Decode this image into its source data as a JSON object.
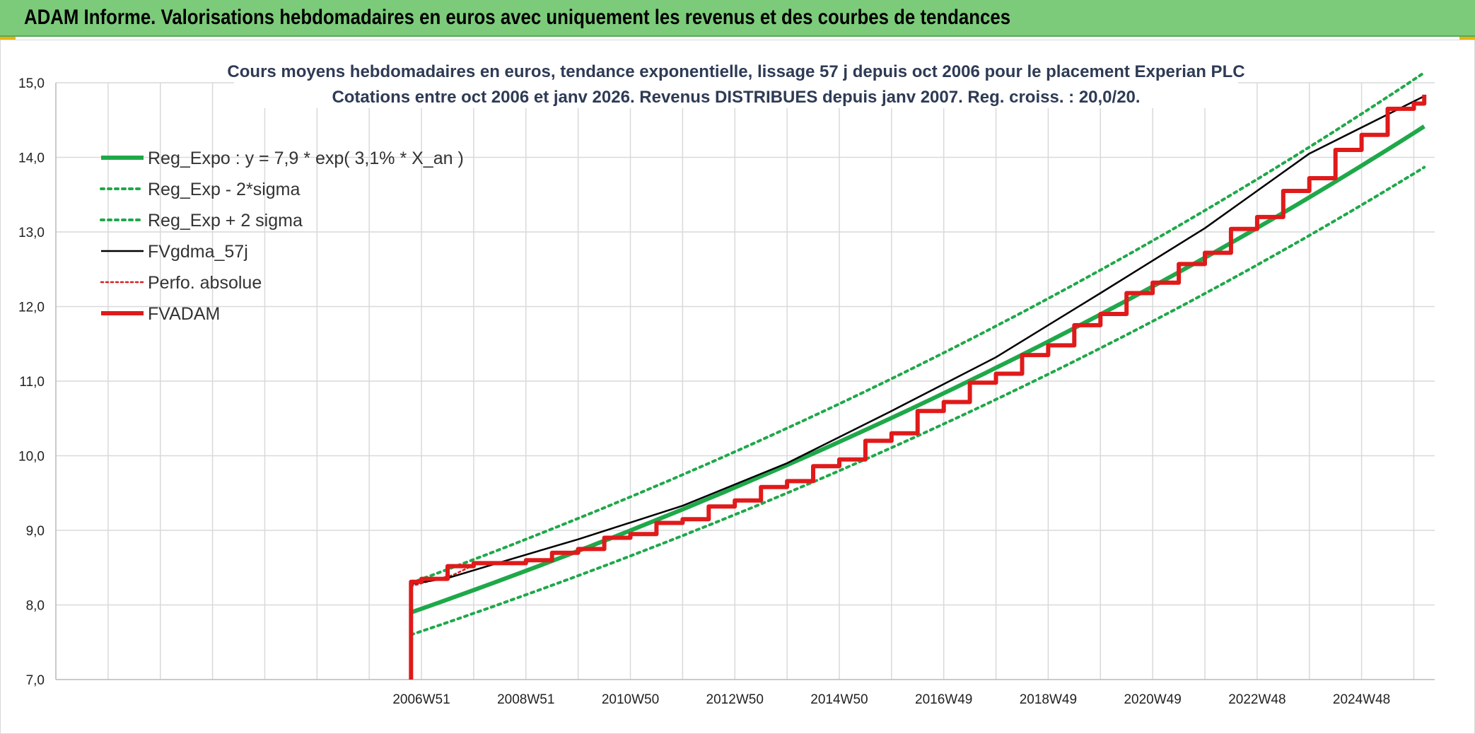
{
  "banner": {
    "title": "ADAM Informe. Valorisations hebdomadaires en euros avec uniquement les revenus et des courbes de tendances"
  },
  "chart_data": {
    "type": "line",
    "title_lines": [
      "Cours moyens hebdomadaires en euros, tendance exponentielle, lissage 57 j depuis oct 2006 pour le placement Experian PLC",
      "Cotations entre oct 2006 et janv 2026. Revenus DISTRIBUES depuis janv 2007. Reg. croiss. : 20,0/20."
    ],
    "xlabel": "",
    "ylabel": "",
    "ylim": [
      7.0,
      15.0
    ],
    "yticks": [
      "7,0",
      "8,0",
      "9,0",
      "10,0",
      "11,0",
      "12,0",
      "13,0",
      "14,0",
      "15,0"
    ],
    "x_tick_labels": [
      "2006W51",
      "2008W51",
      "2010W50",
      "2012W50",
      "2014W50",
      "2016W49",
      "2018W49",
      "2020W49",
      "2022W48",
      "2024W48"
    ],
    "grid": true,
    "legend_position": "top-left",
    "regression": {
      "a": 7.9,
      "rate": 0.031
    },
    "series": [
      {
        "name": "Reg_Expo : y = 7,9 * exp( 3,1% *  X_an )",
        "color": "#1fa84a",
        "style": "solid-thick",
        "points": [
          [
            2006.8,
            7.9
          ],
          [
            2010,
            8.71
          ],
          [
            2014,
            9.84
          ],
          [
            2018,
            11.11
          ],
          [
            2022,
            12.54
          ],
          [
            2025.0,
            13.76
          ],
          [
            2026.2,
            14.36
          ]
        ]
      },
      {
        "name": "Reg_Exp - 2*sigma",
        "color": "#1fa84a",
        "style": "dotted",
        "points": [
          [
            2006.8,
            7.6
          ],
          [
            2010,
            8.38
          ],
          [
            2014,
            9.47
          ],
          [
            2018,
            10.7
          ],
          [
            2022,
            12.06
          ],
          [
            2026.2,
            13.78
          ]
        ]
      },
      {
        "name": "Reg_Exp + 2 sigma",
        "color": "#1fa84a",
        "style": "dotted",
        "points": [
          [
            2006.8,
            8.3
          ],
          [
            2010,
            9.15
          ],
          [
            2014,
            10.34
          ],
          [
            2018,
            11.67
          ],
          [
            2022,
            13.17
          ],
          [
            2026.2,
            14.94
          ]
        ]
      },
      {
        "name": "FVgdma_57j",
        "color": "#000000",
        "style": "solid",
        "points": [
          [
            2006.8,
            8.28
          ],
          [
            2007.5,
            8.36
          ],
          [
            2008.5,
            8.57
          ],
          [
            2010,
            8.88
          ],
          [
            2012,
            9.33
          ],
          [
            2014,
            9.9
          ],
          [
            2016,
            10.6
          ],
          [
            2018,
            11.32
          ],
          [
            2020,
            12.18
          ],
          [
            2022,
            13.05
          ],
          [
            2024,
            14.05
          ],
          [
            2026.2,
            14.82
          ]
        ]
      },
      {
        "name": "Perfo. absolue",
        "color": "#d42020",
        "style": "dotted-thin",
        "points": [
          [
            2006.8,
            8.25
          ],
          [
            2007.2,
            8.33
          ],
          [
            2007.6,
            8.4
          ],
          [
            2007.9,
            8.5
          ]
        ]
      },
      {
        "name": "FVADAM",
        "color": "#e01a1a",
        "style": "solid-thick",
        "steps": [
          [
            2006.8,
            8.31
          ],
          [
            2007.0,
            8.35
          ],
          [
            2007.5,
            8.52
          ],
          [
            2008.0,
            8.56
          ],
          [
            2009.0,
            8.6
          ],
          [
            2009.5,
            8.7
          ],
          [
            2010.0,
            8.75
          ],
          [
            2010.5,
            8.9
          ],
          [
            2011.0,
            8.95
          ],
          [
            2011.5,
            9.1
          ],
          [
            2012.0,
            9.15
          ],
          [
            2012.5,
            9.32
          ],
          [
            2013.0,
            9.4
          ],
          [
            2013.5,
            9.58
          ],
          [
            2014.0,
            9.66
          ],
          [
            2014.5,
            9.86
          ],
          [
            2015.0,
            9.95
          ],
          [
            2015.5,
            10.2
          ],
          [
            2016.0,
            10.3
          ],
          [
            2016.5,
            10.6
          ],
          [
            2017.0,
            10.72
          ],
          [
            2017.5,
            10.98
          ],
          [
            2018.0,
            11.1
          ],
          [
            2018.5,
            11.35
          ],
          [
            2019.0,
            11.48
          ],
          [
            2019.5,
            11.75
          ],
          [
            2020.0,
            11.9
          ],
          [
            2020.5,
            12.18
          ],
          [
            2021.0,
            12.32
          ],
          [
            2021.5,
            12.57
          ],
          [
            2022.0,
            12.72
          ],
          [
            2022.5,
            13.04
          ],
          [
            2023.0,
            13.2
          ],
          [
            2023.5,
            13.55
          ],
          [
            2024.0,
            13.72
          ],
          [
            2024.5,
            14.1
          ],
          [
            2025.0,
            14.3
          ],
          [
            2025.5,
            14.65
          ],
          [
            2026.0,
            14.72
          ],
          [
            2026.2,
            14.84
          ]
        ]
      }
    ]
  }
}
